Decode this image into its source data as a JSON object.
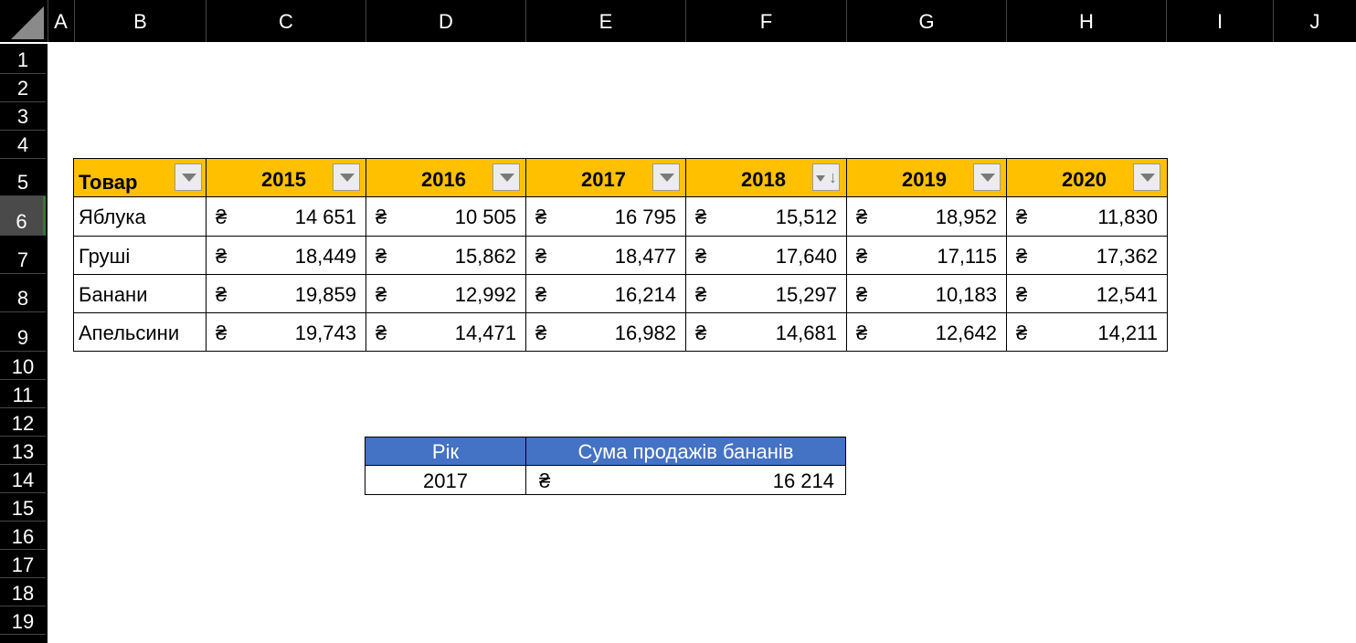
{
  "columns": [
    "A",
    "B",
    "C",
    "D",
    "E",
    "F",
    "G",
    "H",
    "I",
    "J"
  ],
  "rows": [
    "1",
    "2",
    "3",
    "4",
    "5",
    "6",
    "7",
    "8",
    "9",
    "10",
    "11",
    "12",
    "13",
    "14",
    "15",
    "16",
    "17",
    "18",
    "19"
  ],
  "table": {
    "headers": {
      "product": "Товар",
      "years": [
        "2015",
        "2016",
        "2017",
        "2018",
        "2019",
        "2020"
      ]
    },
    "currency_symbol": "₴",
    "rows": [
      {
        "name": "Яблука",
        "values": [
          "14 651",
          "10 505",
          "16 795",
          "15,512",
          "18,952",
          "11,830"
        ]
      },
      {
        "name": "Груші",
        "values": [
          "18,449",
          "15,862",
          "18,477",
          "17,640",
          "17,115",
          "17,362"
        ]
      },
      {
        "name": "Банани",
        "values": [
          "19,859",
          "12,992",
          "16,214",
          "15,297",
          "10,183",
          "12,541"
        ]
      },
      {
        "name": "Апельсини",
        "values": [
          "19,743",
          "14,471",
          "16,982",
          "14,681",
          "12,642",
          "14,211"
        ]
      }
    ],
    "sort_arrow": "↓"
  },
  "lookup": {
    "year_label": "Рік",
    "sum_label": "Сума продажів бананів",
    "year_value": "2017",
    "currency_symbol": "₴",
    "sum_value": "16 214"
  },
  "colors": {
    "header_fill": "#FFC000",
    "lookup_header_fill": "#4472C4",
    "grid_header_bg": "#000000",
    "selected_row_accent": "#2e7d32"
  }
}
